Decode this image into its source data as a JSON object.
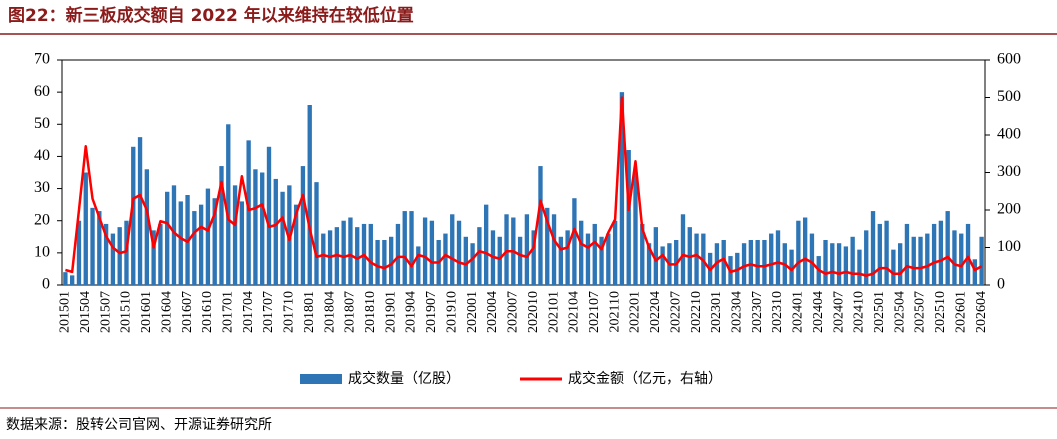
{
  "chart_data": {
    "type": "bar",
    "title": "图22：新三板成交额自 2022 年以来维持在较低位置",
    "source": "数据来源：股转公司官网、开源证券研究所",
    "categories": [
      "201501",
      null,
      null,
      "201504",
      null,
      null,
      "201507",
      null,
      null,
      "201510",
      null,
      null,
      "201601",
      null,
      null,
      "201604",
      null,
      null,
      "201607",
      null,
      null,
      "201610",
      null,
      null,
      "201701",
      null,
      null,
      "201704",
      null,
      null,
      "201707",
      null,
      null,
      "201710",
      null,
      null,
      "201801",
      null,
      null,
      "201804",
      null,
      null,
      "201807",
      null,
      null,
      "201810",
      null,
      null,
      "201901",
      null,
      null,
      "201904",
      null,
      null,
      "201907",
      null,
      null,
      "201910",
      null,
      null,
      "202001",
      null,
      null,
      "202004",
      null,
      null,
      "202007",
      null,
      null,
      "202010",
      null,
      null,
      "202101",
      null,
      null,
      "202104",
      null,
      null,
      "202107",
      null,
      null,
      "202110",
      null,
      null,
      "202201",
      null,
      null,
      "202204",
      null,
      null,
      "202207",
      null,
      null,
      "202210",
      null,
      null,
      "202301",
      null,
      null,
      "202304",
      null,
      null,
      "202307",
      null,
      null,
      "202310",
      null,
      null,
      "202401",
      null,
      null,
      "202404",
      null,
      null,
      "202407",
      null,
      null,
      "202410",
      null,
      null,
      "202501",
      null,
      null,
      "202504",
      null,
      null,
      "202507",
      null,
      null,
      "202510",
      null,
      null,
      "202601",
      null,
      null,
      "202604"
    ],
    "series": [
      {
        "name": "成交数量（亿股）",
        "type": "bar",
        "color": "#2e75b6",
        "values": [
          4,
          3,
          20,
          35,
          24,
          23,
          19,
          16,
          18,
          20,
          43,
          46,
          36,
          17,
          19,
          29,
          31,
          26,
          28,
          23,
          25,
          30,
          27,
          37,
          50,
          31,
          26,
          45,
          36,
          35,
          43,
          33,
          29,
          31,
          25,
          37,
          56,
          32,
          16,
          17,
          18,
          20,
          21,
          18,
          19,
          19,
          14,
          14,
          15,
          19,
          23,
          23,
          12,
          21,
          20,
          14,
          16,
          22,
          20,
          15,
          13,
          18,
          25,
          17,
          15,
          22,
          21,
          15,
          22,
          17,
          37,
          24,
          22,
          15,
          17,
          27,
          20,
          16,
          19,
          15,
          16,
          20,
          60,
          42,
          35,
          19,
          13,
          18,
          12,
          13,
          14,
          22,
          18,
          16,
          16,
          10,
          13,
          14,
          9,
          10,
          13,
          14,
          14,
          14,
          16,
          17,
          13,
          11,
          20,
          21,
          16,
          9,
          14,
          13,
          13,
          12,
          15,
          11,
          17,
          23,
          19,
          20,
          11,
          13,
          19,
          15,
          15,
          16,
          19,
          20,
          23,
          17,
          16,
          19,
          8,
          15
        ]
      },
      {
        "name": "成交金额（亿元，右轴）",
        "type": "line",
        "axis": "y2",
        "color": "#ff0000",
        "values": [
          40,
          35,
          200,
          370,
          230,
          180,
          130,
          100,
          85,
          90,
          230,
          240,
          200,
          100,
          170,
          165,
          140,
          125,
          115,
          140,
          155,
          145,
          190,
          275,
          175,
          160,
          290,
          200,
          205,
          215,
          155,
          160,
          180,
          120,
          190,
          240,
          150,
          75,
          80,
          75,
          80,
          75,
          80,
          70,
          80,
          60,
          50,
          45,
          55,
          75,
          75,
          50,
          80,
          75,
          60,
          60,
          80,
          70,
          60,
          55,
          70,
          90,
          85,
          75,
          70,
          90,
          90,
          80,
          75,
          100,
          225,
          170,
          120,
          95,
          100,
          150,
          110,
          100,
          115,
          95,
          140,
          175,
          500,
          200,
          330,
          150,
          100,
          65,
          80,
          55,
          55,
          80,
          75,
          80,
          65,
          40,
          60,
          70,
          35,
          40,
          50,
          55,
          50,
          50,
          55,
          60,
          55,
          40,
          60,
          70,
          60,
          40,
          30,
          35,
          30,
          35,
          30,
          30,
          25,
          30,
          45,
          45,
          30,
          30,
          50,
          45,
          45,
          50,
          60,
          65,
          75,
          55,
          50,
          75,
          40,
          50
        ]
      }
    ],
    "ylim": [
      0,
      70
    ],
    "yticks": [
      0,
      10,
      20,
      30,
      40,
      50,
      60,
      70
    ],
    "y2lim": [
      0,
      600
    ],
    "y2ticks": [
      0,
      100,
      200,
      300,
      400,
      500,
      600
    ]
  }
}
